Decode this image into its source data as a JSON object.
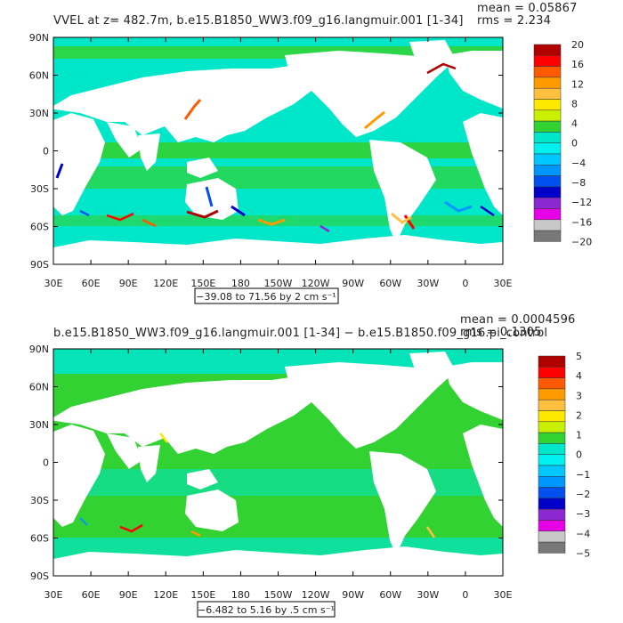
{
  "chart_data": [
    {
      "type": "heatmap",
      "title": "VVEL at z= 482.7m, b.e15.B1850_WW3.f09_g16.langmuir.001 [1-34]",
      "stats": [
        "mean = 0.05867",
        "rms = 2.234"
      ],
      "xticks": [
        "30E",
        "60E",
        "90E",
        "120E",
        "150E",
        "180",
        "150W",
        "120W",
        "90W",
        "60W",
        "30W",
        "0",
        "30E"
      ],
      "yticks": [
        "90N",
        "60N",
        "30N",
        "0",
        "30S",
        "60S",
        "90S"
      ],
      "range_label": "−39.08 to 71.56 by 2 cm s⁻¹",
      "colorbar": {
        "labels": [
          "20",
          "16",
          "12",
          "8",
          "4",
          "0",
          "−4",
          "−8",
          "−12",
          "−16",
          "−20"
        ],
        "colors": [
          "#b00000",
          "#ff0000",
          "#ff5a00",
          "#ff9a00",
          "#ffc040",
          "#ffe800",
          "#c8f000",
          "#32d232",
          "#00e6c8",
          "#00f0f0",
          "#00c8ff",
          "#0096ff",
          "#0050f0",
          "#0000c8",
          "#8c28d2",
          "#e600e6",
          "#c8c8c8",
          "#787878"
        ]
      }
    },
    {
      "type": "heatmap",
      "title": "b.e15.B1850_WW3.f09_g16.langmuir.001 [1-34] − b.e15.B1850.f09_g16.pi_control",
      "stats": [
        "mean = 0.0004596",
        "rms = 0.1305"
      ],
      "xticks": [
        "30E",
        "60E",
        "90E",
        "120E",
        "150E",
        "180",
        "150W",
        "120W",
        "90W",
        "60W",
        "30W",
        "0",
        "30E"
      ],
      "yticks": [
        "90N",
        "60N",
        "30N",
        "0",
        "30S",
        "60S",
        "90S"
      ],
      "range_label": "−6.482 to 5.16 by .5 cm s⁻¹",
      "colorbar": {
        "labels": [
          "5",
          "4",
          "3",
          "2",
          "1",
          "0",
          "−1",
          "−2",
          "−3",
          "−4",
          "−5"
        ],
        "colors": [
          "#b00000",
          "#ff0000",
          "#ff5a00",
          "#ff9a00",
          "#ffc040",
          "#ffe800",
          "#c8f000",
          "#32d232",
          "#00e6c8",
          "#00f0f0",
          "#00c8ff",
          "#0096ff",
          "#0050f0",
          "#0000c8",
          "#8c28d2",
          "#e600e6",
          "#c8c8c8",
          "#787878"
        ]
      }
    }
  ],
  "map_colors": {
    "ocean_main": "#00e6c8",
    "ocean_alt": "#32d232",
    "land": "#ffffff"
  }
}
